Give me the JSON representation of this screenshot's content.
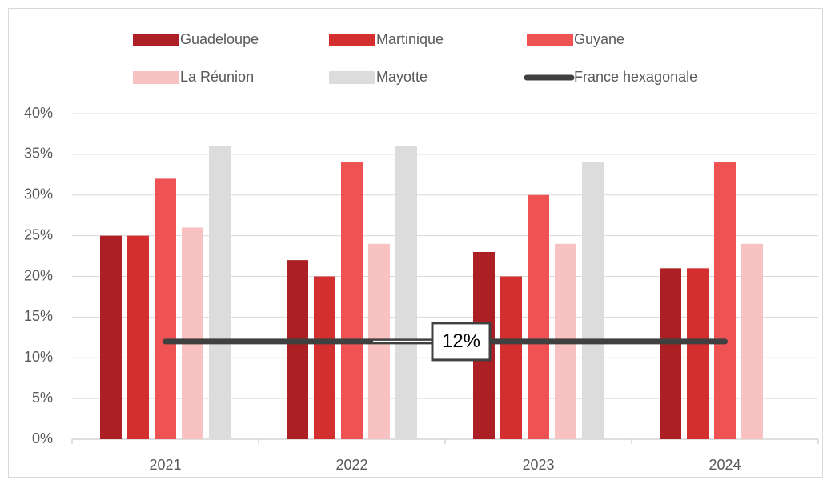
{
  "chart_data": {
    "type": "bar",
    "categories": [
      "2021",
      "2022",
      "2023",
      "2024"
    ],
    "series": [
      {
        "name": "Guadeloupe",
        "color": "#ac1f24",
        "values": [
          25,
          22,
          23,
          21
        ]
      },
      {
        "name": "Martinique",
        "color": "#d32f2f",
        "values": [
          25,
          20,
          20,
          21
        ]
      },
      {
        "name": "Guyane",
        "color": "#ee5252",
        "values": [
          32,
          34,
          30,
          34
        ]
      },
      {
        "name": "La Réunion",
        "color": "#f9c2c2",
        "values": [
          26,
          24,
          24,
          24
        ]
      },
      {
        "name": "Mayotte",
        "color": "#dcdcdc",
        "values": [
          36,
          36,
          34,
          null
        ]
      },
      {
        "name": "France hexagonale",
        "color": "#404040",
        "type": "line",
        "values": [
          12,
          12,
          12,
          12
        ]
      }
    ],
    "annotation": "12%",
    "ylim": [
      0,
      40
    ],
    "yticks": [
      {
        "value": 0,
        "label": "0%"
      },
      {
        "value": 5,
        "label": "5%"
      },
      {
        "value": 10,
        "label": "10%"
      },
      {
        "value": 15,
        "label": "15%"
      },
      {
        "value": 20,
        "label": "20%"
      },
      {
        "value": 25,
        "label": "25%"
      },
      {
        "value": 30,
        "label": "30%"
      },
      {
        "value": 35,
        "label": "35%"
      },
      {
        "value": 40,
        "label": "40%"
      }
    ],
    "grid": true,
    "legend": "top"
  }
}
